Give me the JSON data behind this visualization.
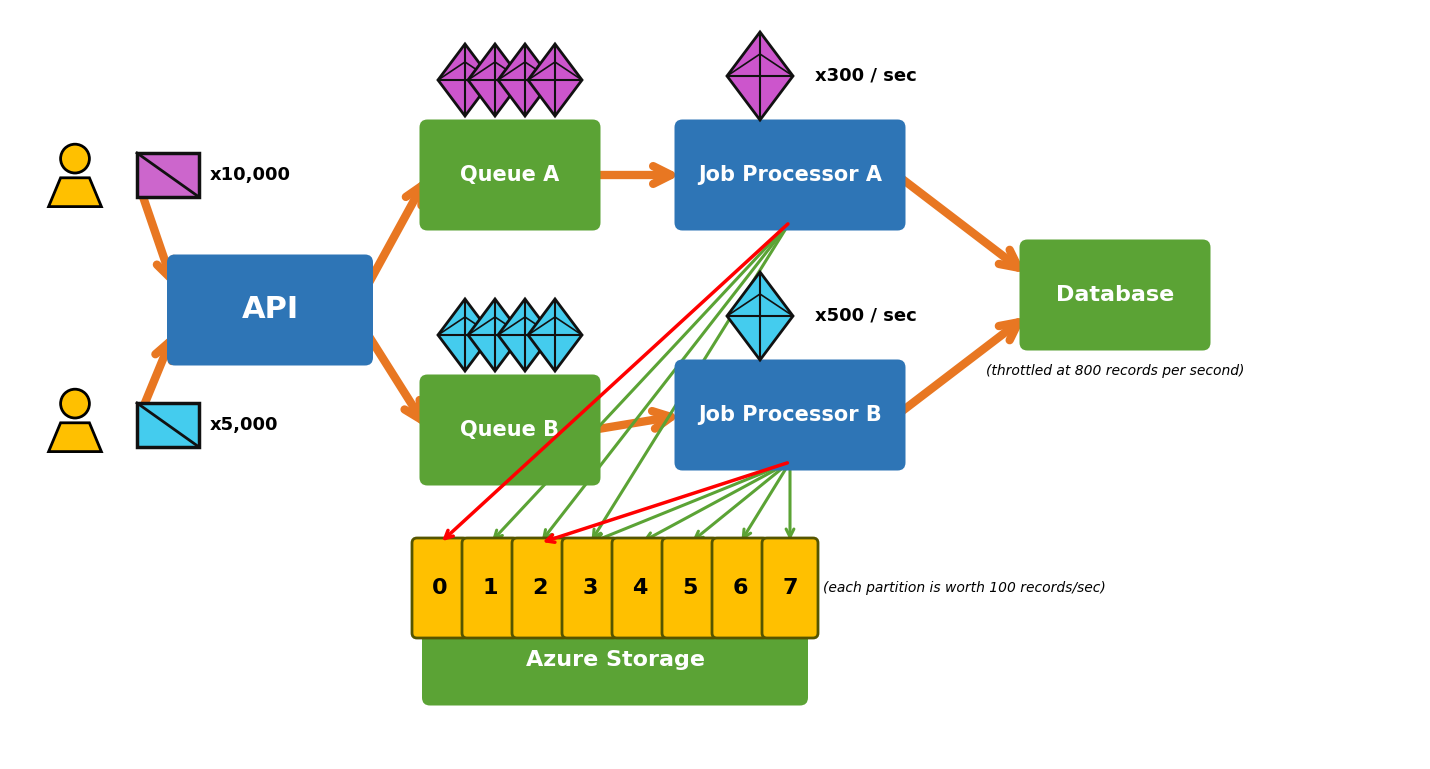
{
  "bg_color": "#ffffff",
  "blue_color": "#2E75B6",
  "green_color": "#5BA335",
  "orange_color": "#E87722",
  "yellow_color": "#FFC000",
  "red_color": "#FF0000",
  "person_color": "#FFC000",
  "envelope_pink": "#CC55CC",
  "envelope_cyan": "#44CCFF",
  "black": "#000000",
  "annotations": {
    "x10000": "x10,000",
    "x5000": "x5,000",
    "x300sec": "x300 / sec",
    "x500sec": "x500 / sec",
    "db_note": "(throttled at 800 records per second)",
    "partition_note": "(each partition is worth 100 records/sec)"
  },
  "partitions": [
    0,
    1,
    2,
    3,
    4,
    5,
    6,
    7
  ]
}
